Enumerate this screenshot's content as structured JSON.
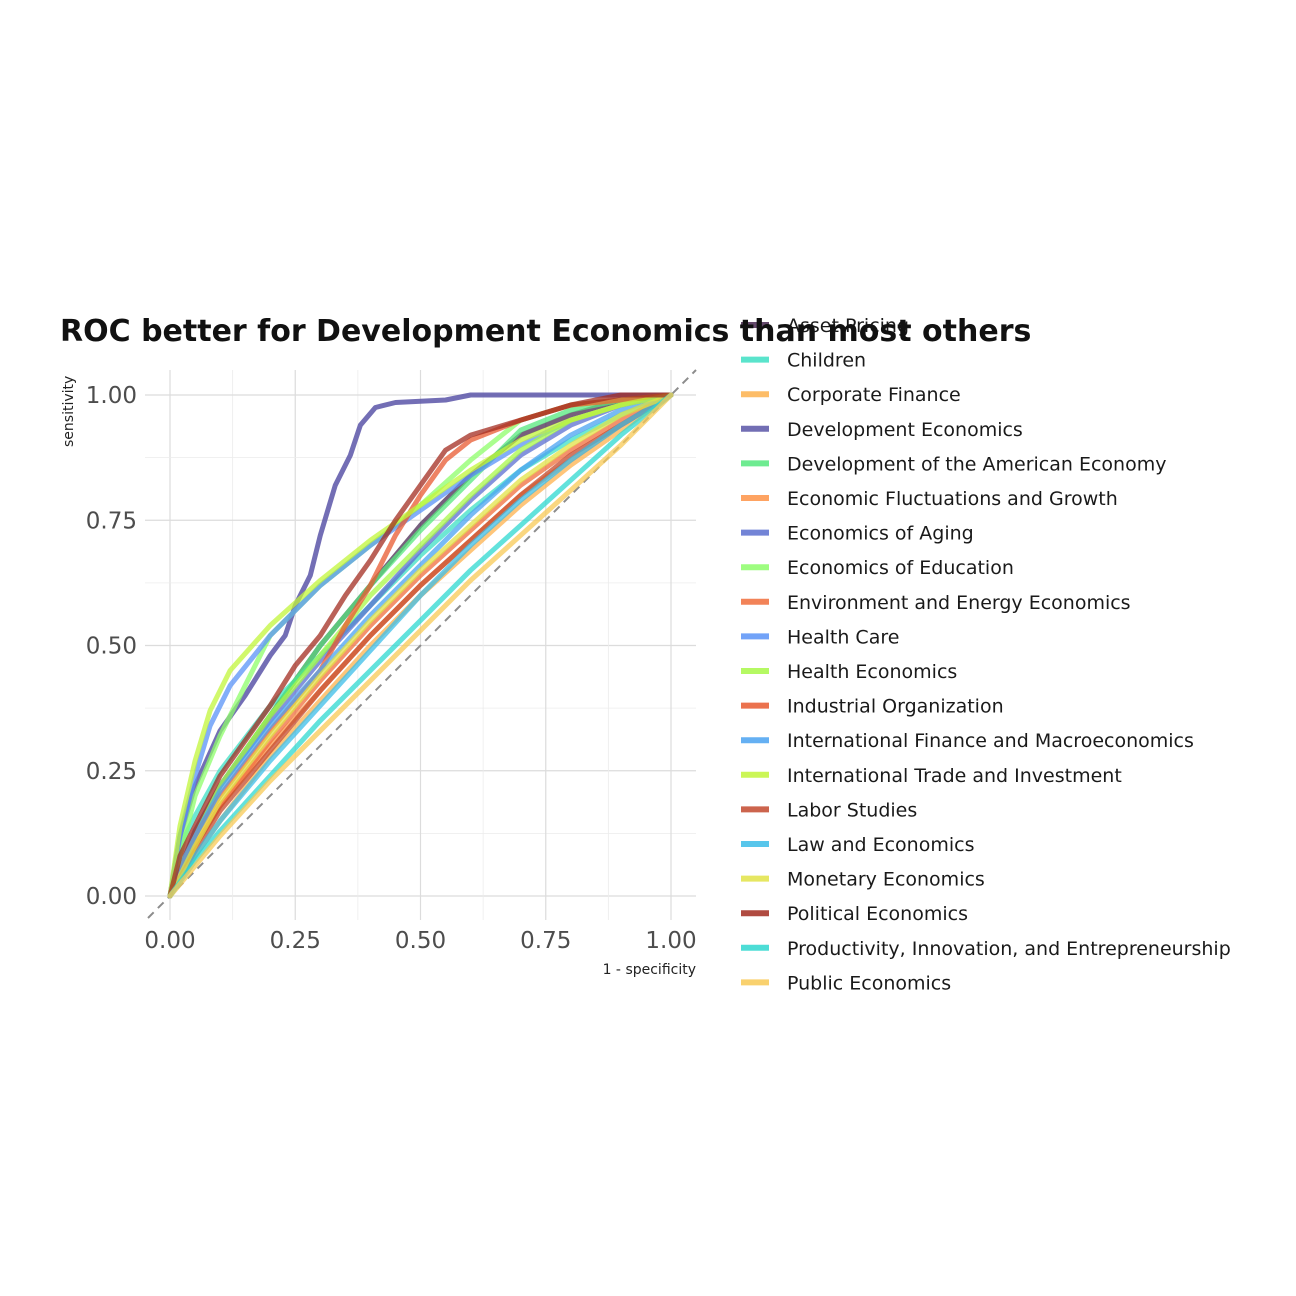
{
  "chart_data": {
    "type": "line",
    "title": "ROC better for Development Economics than most others",
    "xlabel": "1 - specificity",
    "ylabel": "sensitivity",
    "xlim": [
      0,
      1
    ],
    "ylim": [
      0,
      1
    ],
    "x_ticks": [
      "0.00",
      "0.25",
      "0.50",
      "0.75",
      "1.00"
    ],
    "y_ticks": [
      "0.00",
      "0.25",
      "0.50",
      "0.75",
      "1.00"
    ],
    "grid": true,
    "reference_line": "diagonal dashed",
    "legend_position": "right",
    "series": [
      {
        "name": "Asset Pricing",
        "color": "#4a2a52",
        "points": [
          [
            0,
            0
          ],
          [
            0.05,
            0.12
          ],
          [
            0.1,
            0.22
          ],
          [
            0.2,
            0.36
          ],
          [
            0.3,
            0.5
          ],
          [
            0.4,
            0.62
          ],
          [
            0.5,
            0.74
          ],
          [
            0.6,
            0.84
          ],
          [
            0.7,
            0.92
          ],
          [
            0.8,
            0.96
          ],
          [
            0.9,
            0.99
          ],
          [
            1,
            1
          ]
        ]
      },
      {
        "name": "Children",
        "color": "#3ee0c4",
        "points": [
          [
            0,
            0
          ],
          [
            0.02,
            0.1
          ],
          [
            0.05,
            0.16
          ],
          [
            0.1,
            0.25
          ],
          [
            0.2,
            0.38
          ],
          [
            0.3,
            0.48
          ],
          [
            0.4,
            0.58
          ],
          [
            0.5,
            0.68
          ],
          [
            0.6,
            0.77
          ],
          [
            0.7,
            0.85
          ],
          [
            0.8,
            0.91
          ],
          [
            0.9,
            0.96
          ],
          [
            1,
            1
          ]
        ]
      },
      {
        "name": "Corporate Finance",
        "color": "#fdb24e",
        "points": [
          [
            0,
            0
          ],
          [
            0.05,
            0.08
          ],
          [
            0.1,
            0.15
          ],
          [
            0.2,
            0.28
          ],
          [
            0.3,
            0.39
          ],
          [
            0.4,
            0.5
          ],
          [
            0.5,
            0.6
          ],
          [
            0.6,
            0.69
          ],
          [
            0.7,
            0.78
          ],
          [
            0.8,
            0.86
          ],
          [
            0.9,
            0.93
          ],
          [
            1,
            1
          ]
        ]
      },
      {
        "name": "Development Economics",
        "color": "#5a55a8",
        "points": [
          [
            0,
            0
          ],
          [
            0.02,
            0.12
          ],
          [
            0.05,
            0.22
          ],
          [
            0.1,
            0.33
          ],
          [
            0.15,
            0.4
          ],
          [
            0.2,
            0.48
          ],
          [
            0.23,
            0.52
          ],
          [
            0.25,
            0.58
          ],
          [
            0.28,
            0.64
          ],
          [
            0.3,
            0.72
          ],
          [
            0.33,
            0.82
          ],
          [
            0.36,
            0.88
          ],
          [
            0.38,
            0.94
          ],
          [
            0.41,
            0.975
          ],
          [
            0.45,
            0.985
          ],
          [
            0.55,
            0.99
          ],
          [
            0.6,
            1
          ],
          [
            1,
            1
          ]
        ]
      },
      {
        "name": "Development of the American Economy",
        "color": "#55e87e",
        "points": [
          [
            0,
            0
          ],
          [
            0.05,
            0.13
          ],
          [
            0.1,
            0.22
          ],
          [
            0.2,
            0.36
          ],
          [
            0.3,
            0.5
          ],
          [
            0.4,
            0.62
          ],
          [
            0.5,
            0.73
          ],
          [
            0.6,
            0.83
          ],
          [
            0.7,
            0.93
          ],
          [
            0.8,
            0.97
          ],
          [
            0.9,
            0.99
          ],
          [
            1,
            1
          ]
        ]
      },
      {
        "name": "Economic Fluctuations and Growth",
        "color": "#fe9447",
        "points": [
          [
            0,
            0
          ],
          [
            0.05,
            0.1
          ],
          [
            0.1,
            0.18
          ],
          [
            0.2,
            0.3
          ],
          [
            0.3,
            0.41
          ],
          [
            0.4,
            0.52
          ],
          [
            0.5,
            0.62
          ],
          [
            0.6,
            0.71
          ],
          [
            0.7,
            0.8
          ],
          [
            0.8,
            0.87
          ],
          [
            0.9,
            0.94
          ],
          [
            1,
            1
          ]
        ]
      },
      {
        "name": "Economics of Aging",
        "color": "#5b6fd0",
        "points": [
          [
            0,
            0
          ],
          [
            0.05,
            0.13
          ],
          [
            0.1,
            0.22
          ],
          [
            0.2,
            0.35
          ],
          [
            0.3,
            0.47
          ],
          [
            0.4,
            0.58
          ],
          [
            0.5,
            0.69
          ],
          [
            0.6,
            0.79
          ],
          [
            0.7,
            0.88
          ],
          [
            0.8,
            0.94
          ],
          [
            0.9,
            0.98
          ],
          [
            1,
            1
          ]
        ]
      },
      {
        "name": "Economics of Education",
        "color": "#8efd6a",
        "points": [
          [
            0,
            0
          ],
          [
            0.05,
            0.2
          ],
          [
            0.1,
            0.32
          ],
          [
            0.15,
            0.42
          ],
          [
            0.2,
            0.52
          ],
          [
            0.3,
            0.62
          ],
          [
            0.4,
            0.7
          ],
          [
            0.5,
            0.78
          ],
          [
            0.6,
            0.87
          ],
          [
            0.7,
            0.95
          ],
          [
            0.8,
            0.98
          ],
          [
            0.9,
            0.99
          ],
          [
            1,
            1
          ]
        ]
      },
      {
        "name": "Environment and Energy Economics",
        "color": "#f06e3c",
        "points": [
          [
            0,
            0
          ],
          [
            0.05,
            0.1
          ],
          [
            0.1,
            0.18
          ],
          [
            0.2,
            0.31
          ],
          [
            0.3,
            0.43
          ],
          [
            0.4,
            0.54
          ],
          [
            0.5,
            0.64
          ],
          [
            0.6,
            0.73
          ],
          [
            0.7,
            0.82
          ],
          [
            0.8,
            0.89
          ],
          [
            0.9,
            0.95
          ],
          [
            1,
            1
          ]
        ]
      },
      {
        "name": "Health Care",
        "color": "#5a93f7",
        "points": [
          [
            0,
            0
          ],
          [
            0.02,
            0.12
          ],
          [
            0.05,
            0.24
          ],
          [
            0.08,
            0.34
          ],
          [
            0.12,
            0.42
          ],
          [
            0.2,
            0.52
          ],
          [
            0.3,
            0.62
          ],
          [
            0.4,
            0.7
          ],
          [
            0.5,
            0.77
          ],
          [
            0.6,
            0.84
          ],
          [
            0.7,
            0.9
          ],
          [
            0.8,
            0.95
          ],
          [
            0.9,
            0.98
          ],
          [
            1,
            1
          ]
        ]
      },
      {
        "name": "Health Economics",
        "color": "#a9f848",
        "points": [
          [
            0,
            0
          ],
          [
            0.05,
            0.12
          ],
          [
            0.1,
            0.22
          ],
          [
            0.2,
            0.36
          ],
          [
            0.3,
            0.48
          ],
          [
            0.4,
            0.6
          ],
          [
            0.5,
            0.7
          ],
          [
            0.6,
            0.8
          ],
          [
            0.7,
            0.89
          ],
          [
            0.8,
            0.95
          ],
          [
            0.9,
            0.98
          ],
          [
            1,
            1
          ]
        ]
      },
      {
        "name": "Industrial Organization",
        "color": "#e85a30",
        "points": [
          [
            0,
            0
          ],
          [
            0.05,
            0.12
          ],
          [
            0.1,
            0.2
          ],
          [
            0.2,
            0.33
          ],
          [
            0.3,
            0.45
          ],
          [
            0.35,
            0.54
          ],
          [
            0.4,
            0.62
          ],
          [
            0.45,
            0.72
          ],
          [
            0.5,
            0.8
          ],
          [
            0.55,
            0.87
          ],
          [
            0.6,
            0.91
          ],
          [
            0.7,
            0.95
          ],
          [
            0.8,
            0.98
          ],
          [
            0.9,
            0.99
          ],
          [
            1,
            1
          ]
        ]
      },
      {
        "name": "International Finance and Macroeconomics",
        "color": "#4ba3f2",
        "points": [
          [
            0,
            0
          ],
          [
            0.05,
            0.12
          ],
          [
            0.1,
            0.21
          ],
          [
            0.2,
            0.34
          ],
          [
            0.3,
            0.45
          ],
          [
            0.4,
            0.56
          ],
          [
            0.5,
            0.66
          ],
          [
            0.6,
            0.76
          ],
          [
            0.7,
            0.85
          ],
          [
            0.8,
            0.92
          ],
          [
            0.9,
            0.97
          ],
          [
            1,
            1
          ]
        ]
      },
      {
        "name": "International Trade and Investment",
        "color": "#c2f53a",
        "points": [
          [
            0,
            0
          ],
          [
            0.02,
            0.14
          ],
          [
            0.05,
            0.27
          ],
          [
            0.08,
            0.37
          ],
          [
            0.12,
            0.45
          ],
          [
            0.2,
            0.54
          ],
          [
            0.3,
            0.63
          ],
          [
            0.4,
            0.71
          ],
          [
            0.5,
            0.78
          ],
          [
            0.6,
            0.85
          ],
          [
            0.7,
            0.91
          ],
          [
            0.8,
            0.95
          ],
          [
            0.9,
            0.98
          ],
          [
            1,
            1
          ]
        ]
      },
      {
        "name": "Labor Studies",
        "color": "#c44a2e",
        "points": [
          [
            0,
            0
          ],
          [
            0.05,
            0.09
          ],
          [
            0.1,
            0.17
          ],
          [
            0.2,
            0.29
          ],
          [
            0.3,
            0.41
          ],
          [
            0.4,
            0.52
          ],
          [
            0.5,
            0.62
          ],
          [
            0.6,
            0.71
          ],
          [
            0.7,
            0.8
          ],
          [
            0.8,
            0.88
          ],
          [
            0.9,
            0.94
          ],
          [
            1,
            1
          ]
        ]
      },
      {
        "name": "Law and Economics",
        "color": "#3cbde8",
        "points": [
          [
            0,
            0
          ],
          [
            0.05,
            0.08
          ],
          [
            0.1,
            0.15
          ],
          [
            0.2,
            0.27
          ],
          [
            0.3,
            0.38
          ],
          [
            0.4,
            0.49
          ],
          [
            0.5,
            0.6
          ],
          [
            0.6,
            0.7
          ],
          [
            0.7,
            0.79
          ],
          [
            0.8,
            0.87
          ],
          [
            0.9,
            0.94
          ],
          [
            1,
            1
          ]
        ]
      },
      {
        "name": "Monetary Economics",
        "color": "#e2e347",
        "points": [
          [
            0,
            0
          ],
          [
            0.05,
            0.1
          ],
          [
            0.1,
            0.19
          ],
          [
            0.2,
            0.32
          ],
          [
            0.3,
            0.44
          ],
          [
            0.4,
            0.55
          ],
          [
            0.5,
            0.65
          ],
          [
            0.6,
            0.74
          ],
          [
            0.7,
            0.83
          ],
          [
            0.8,
            0.9
          ],
          [
            0.9,
            0.96
          ],
          [
            1,
            1
          ]
        ]
      },
      {
        "name": "Political Economics",
        "color": "#a32c20",
        "points": [
          [
            0,
            0
          ],
          [
            0.02,
            0.08
          ],
          [
            0.05,
            0.14
          ],
          [
            0.1,
            0.24
          ],
          [
            0.2,
            0.38
          ],
          [
            0.25,
            0.46
          ],
          [
            0.3,
            0.52
          ],
          [
            0.35,
            0.6
          ],
          [
            0.4,
            0.67
          ],
          [
            0.45,
            0.75
          ],
          [
            0.5,
            0.82
          ],
          [
            0.55,
            0.89
          ],
          [
            0.6,
            0.92
          ],
          [
            0.7,
            0.95
          ],
          [
            0.8,
            0.98
          ],
          [
            0.9,
            1
          ],
          [
            1,
            1
          ]
        ]
      },
      {
        "name": "Productivity, Innovation, and Entrepreneurship",
        "color": "#2ed8d0",
        "points": [
          [
            0,
            0
          ],
          [
            0.05,
            0.07
          ],
          [
            0.1,
            0.13
          ],
          [
            0.2,
            0.24
          ],
          [
            0.3,
            0.35
          ],
          [
            0.4,
            0.45
          ],
          [
            0.5,
            0.55
          ],
          [
            0.6,
            0.65
          ],
          [
            0.7,
            0.74
          ],
          [
            0.8,
            0.83
          ],
          [
            0.9,
            0.92
          ],
          [
            1,
            1
          ]
        ]
      },
      {
        "name": "Public Economics",
        "color": "#f8ca55",
        "points": [
          [
            0,
            0
          ],
          [
            0.05,
            0.06
          ],
          [
            0.1,
            0.12
          ],
          [
            0.2,
            0.23
          ],
          [
            0.3,
            0.33
          ],
          [
            0.4,
            0.43
          ],
          [
            0.5,
            0.53
          ],
          [
            0.6,
            0.63
          ],
          [
            0.7,
            0.72
          ],
          [
            0.8,
            0.81
          ],
          [
            0.9,
            0.9
          ],
          [
            1,
            1
          ]
        ]
      }
    ]
  }
}
